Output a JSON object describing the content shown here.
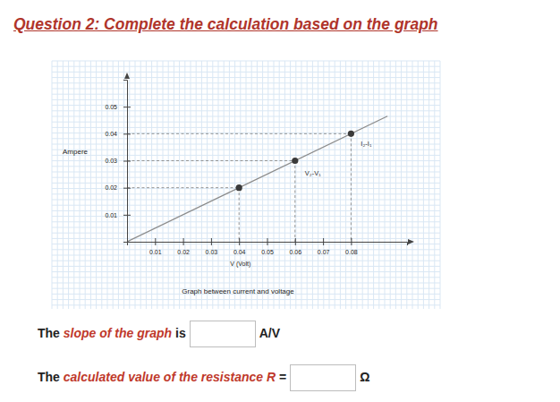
{
  "question": "Question 2: Complete the calculation based on the graph",
  "chart_data": {
    "type": "line",
    "x_label": "V (Volt)",
    "y_label": "Ampere",
    "caption": "Graph between current and voltage",
    "xlim": [
      0,
      0.1
    ],
    "ylim": [
      0,
      0.06
    ],
    "xticks": [
      0.01,
      0.02,
      0.03,
      0.04,
      0.05,
      0.06,
      0.07,
      0.08
    ],
    "yticks": [
      0.01,
      0.02,
      0.03,
      0.04,
      0.05
    ],
    "grid": true,
    "series": [
      {
        "type": "line",
        "x": [
          0,
          0.093
        ],
        "values": [
          0,
          0.0465
        ],
        "color": "#8c8c8c",
        "line_style": "solid"
      },
      {
        "type": "scatter",
        "x": [
          0.04,
          0.06,
          0.08
        ],
        "values": [
          0.02,
          0.03,
          0.04
        ],
        "color": "#3a3a3a",
        "marker": "circle"
      }
    ],
    "annotations": [
      {
        "text": "V₂-V₁",
        "x": 0.0635,
        "y": 0.0245
      },
      {
        "text": "I₂-I₁",
        "x": 0.0835,
        "y": 0.0355
      }
    ]
  },
  "form": {
    "lines": [
      {
        "before": "The ",
        "highlight": "slope of the graph",
        "after": " is",
        "unit": "A/V"
      },
      {
        "before": "The ",
        "highlight": "calculated value of the resistance R",
        "after": " =",
        "unit": "Ω"
      }
    ]
  }
}
